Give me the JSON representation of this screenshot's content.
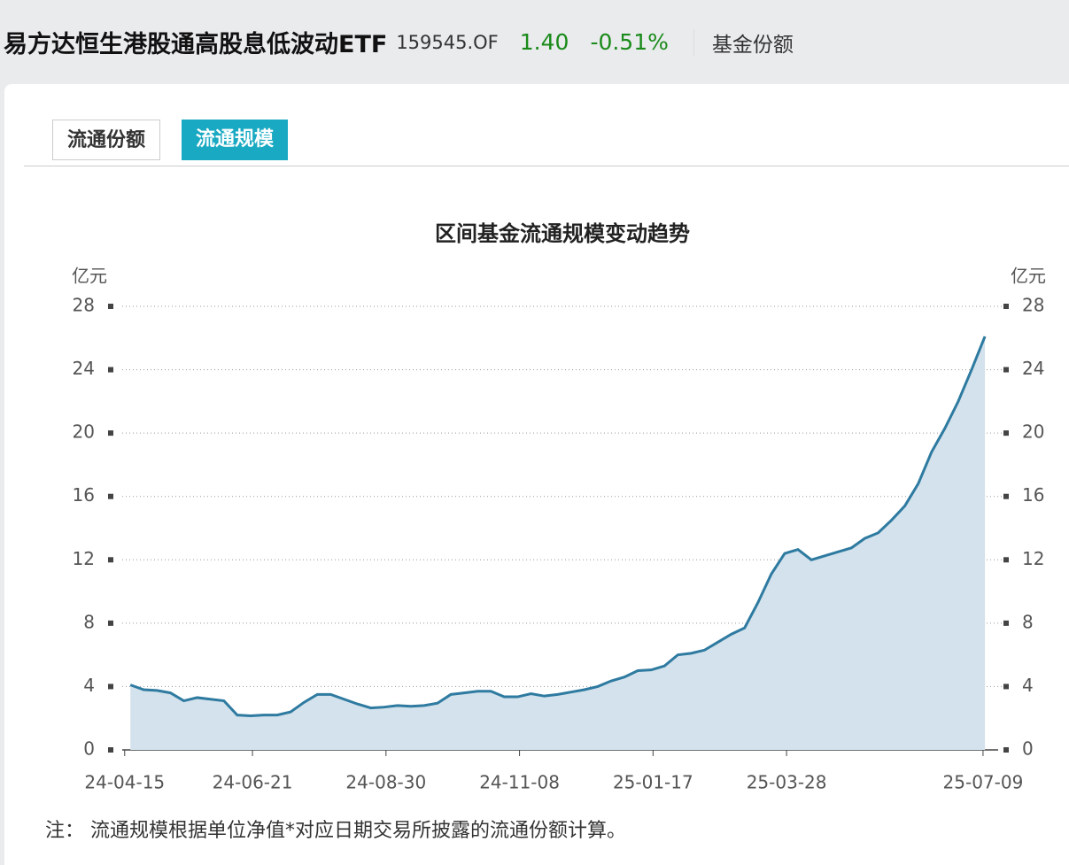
{
  "header": {
    "title": "易方达恒生港股通高股息低波动ETF",
    "code": "159545.OF",
    "price": "1.40",
    "change": "-0.51%",
    "link": "基金份额"
  },
  "tabs": [
    "流通份额",
    "流通规模"
  ],
  "chart_data": {
    "type": "area",
    "title": "区间基金流通规模变动趋势",
    "y_unit": "亿元",
    "color": "#2e7aa0",
    "fill": "#d3e2ec",
    "grid": true,
    "x": [
      "24-04-18",
      "24-04-25",
      "24-05-02",
      "24-05-09",
      "24-05-16",
      "24-05-23",
      "24-05-30",
      "24-06-06",
      "24-06-13",
      "24-06-20",
      "24-06-27",
      "24-07-04",
      "24-07-11",
      "24-07-18",
      "24-07-25",
      "24-08-01",
      "24-08-08",
      "24-08-15",
      "24-08-22",
      "24-08-29",
      "24-09-05",
      "24-09-12",
      "24-09-19",
      "24-09-26",
      "24-10-03",
      "24-10-10",
      "24-10-17",
      "24-10-24",
      "24-10-31",
      "24-11-07",
      "24-11-14",
      "24-11-21",
      "24-11-28",
      "24-12-05",
      "24-12-12",
      "24-12-19",
      "24-12-26",
      "25-01-02",
      "25-01-09",
      "25-01-16",
      "25-01-23",
      "25-01-30",
      "25-02-06",
      "25-02-13",
      "25-02-20",
      "25-02-27",
      "25-03-06",
      "25-03-13",
      "25-03-20",
      "25-03-27",
      "25-04-03",
      "25-04-10",
      "25-04-17",
      "25-04-24",
      "25-05-01",
      "25-05-08",
      "25-05-15",
      "25-05-22",
      "25-05-29",
      "25-06-05",
      "25-06-12",
      "25-06-19",
      "25-06-26",
      "25-07-03",
      "25-07-10"
    ],
    "values": [
      4.1,
      3.8,
      3.75,
      3.6,
      3.1,
      3.3,
      3.2,
      3.1,
      2.2,
      2.15,
      2.2,
      2.2,
      2.4,
      3.0,
      3.5,
      3.5,
      3.2,
      2.9,
      2.65,
      2.7,
      2.8,
      2.75,
      2.8,
      2.95,
      3.5,
      3.6,
      3.7,
      3.7,
      3.35,
      3.35,
      3.55,
      3.4,
      3.5,
      3.65,
      3.8,
      4.0,
      4.35,
      4.6,
      5.0,
      5.05,
      5.3,
      6.0,
      6.1,
      6.3,
      6.8,
      7.3,
      7.7,
      9.3,
      11.1,
      12.4,
      12.65,
      12.0,
      12.25,
      12.5,
      12.75,
      13.35,
      13.7,
      14.5,
      15.4,
      16.8,
      18.8,
      20.3,
      22.0,
      24.0,
      26.1
    ],
    "xlim": [
      "24-04-10",
      "25-07-16"
    ],
    "xticks": [
      "24-04-15",
      "24-06-21",
      "24-08-30",
      "24-11-08",
      "25-01-17",
      "25-03-28",
      "25-07-09"
    ],
    "ylim": [
      0,
      28
    ],
    "yticks": [
      0,
      4,
      8,
      12,
      16,
      20,
      24,
      28
    ]
  },
  "note": {
    "label": "注：",
    "text": "流通规模根据单位净值*对应日期交易所披露的流通份额计算。"
  }
}
